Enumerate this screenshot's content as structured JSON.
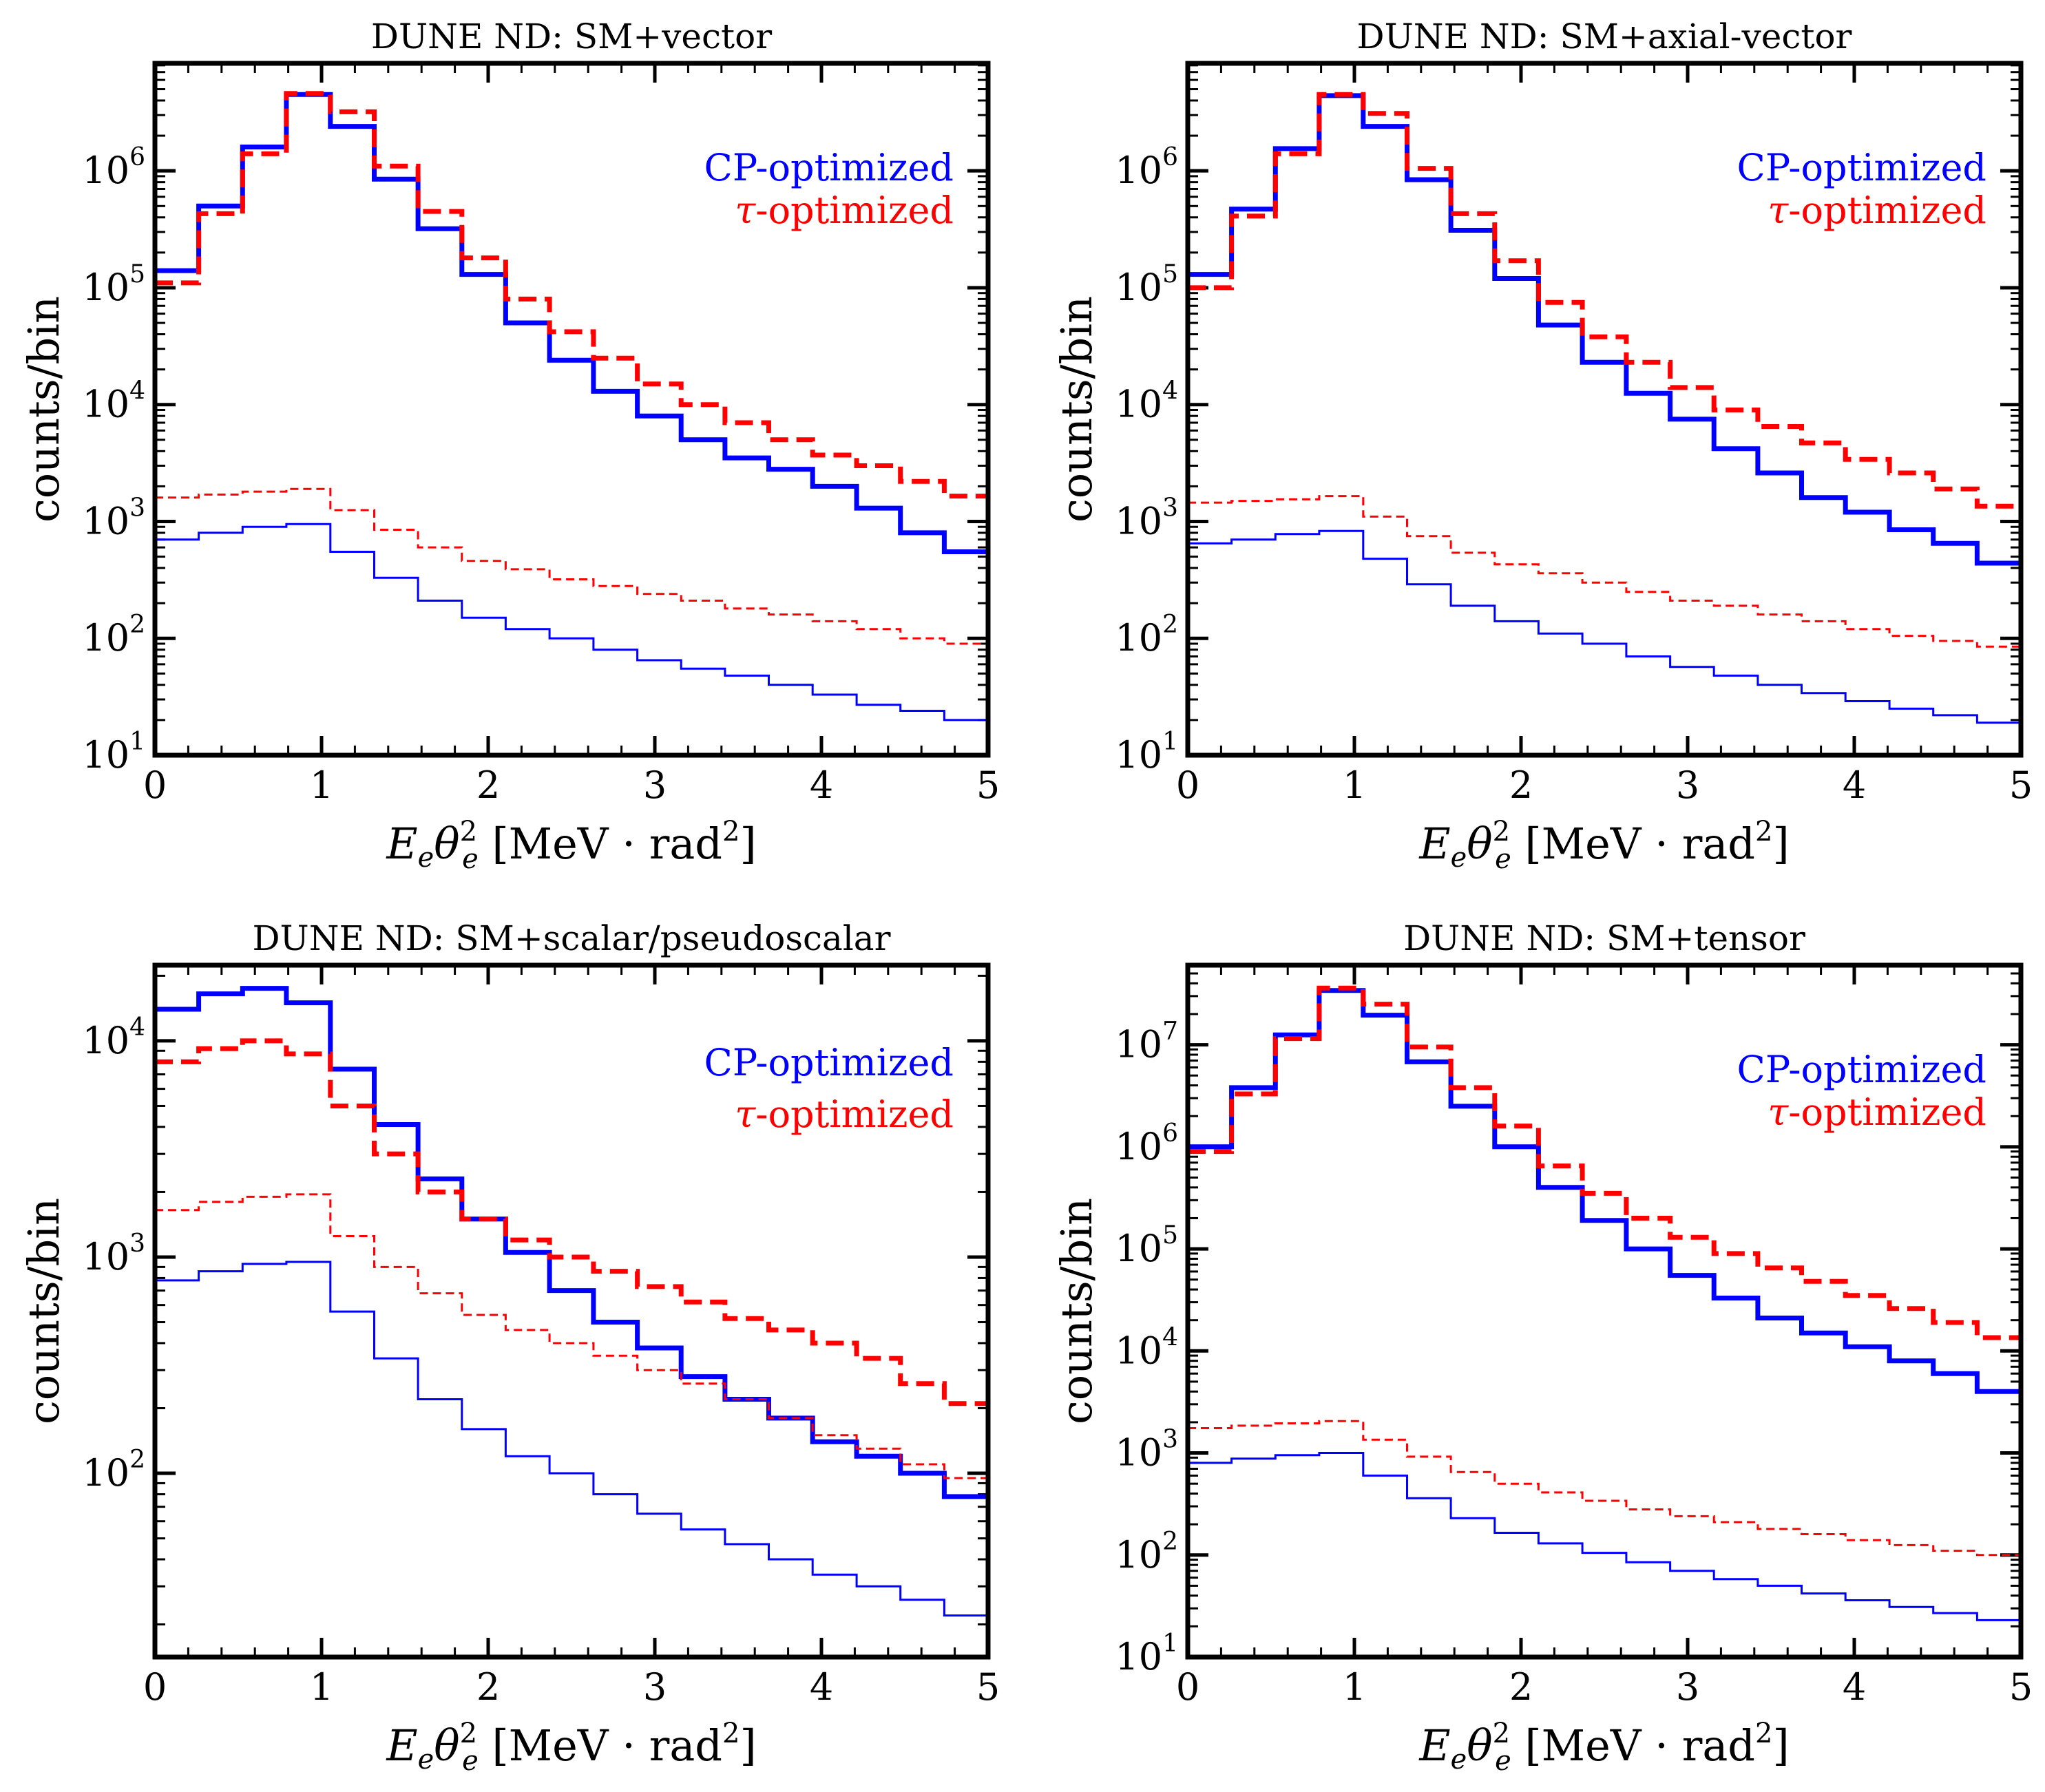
{
  "chart_data": [
    {
      "type": "line",
      "title": "DUNE ND: SM+vector",
      "xlabel": "E_e θ_e^2 [MeV · rad^2]",
      "xlabel_parts": {
        "main": "E",
        "main_sub": "e",
        "angle": "θ",
        "angle_sup": "2",
        "angle_sub": "e",
        "unit_open": "[MeV · rad",
        "unit_sup": "2",
        "unit_close": "]"
      },
      "ylabel": "counts/bin",
      "xlim": [
        0,
        5
      ],
      "ylog": [
        1,
        6.92
      ],
      "xticks": [
        "0",
        "1",
        "2",
        "3",
        "4",
        "5"
      ],
      "yticks": [
        {
          "base": "10",
          "exp": "1",
          "value": 10
        },
        {
          "base": "10",
          "exp": "2",
          "value": 100
        },
        {
          "base": "10",
          "exp": "3",
          "value": 1000
        },
        {
          "base": "10",
          "exp": "4",
          "value": 10000
        },
        {
          "base": "10",
          "exp": "5",
          "value": 100000
        },
        {
          "base": "10",
          "exp": "6",
          "value": 1000000
        }
      ],
      "legend": [
        "CP-optimized",
        "τ-optimized"
      ],
      "legend_position": "upper-right",
      "bin_edges": [
        0,
        0.263,
        0.526,
        0.789,
        1.053,
        1.316,
        1.579,
        1.842,
        2.105,
        2.368,
        2.632,
        2.895,
        3.158,
        3.421,
        3.684,
        3.947,
        4.211,
        4.474,
        4.737,
        5.0
      ],
      "series": [
        {
          "name": "CP-optimized (signal)",
          "color": "#0000ff",
          "style": "solid",
          "weight": "thick",
          "values": [
            140000,
            500000,
            1600000,
            4500000,
            2400000,
            850000,
            320000,
            130000,
            50000,
            24000,
            13000,
            8000,
            5000,
            3500,
            2800,
            2000,
            1300,
            800,
            550
          ]
        },
        {
          "name": "τ-optimized (signal)",
          "color": "#ff0000",
          "style": "dashed",
          "weight": "thick",
          "values": [
            110000,
            430000,
            1400000,
            4600000,
            3200000,
            1100000,
            450000,
            180000,
            80000,
            42000,
            25000,
            15000,
            10000,
            7000,
            5000,
            3700,
            3000,
            2200,
            1650
          ]
        },
        {
          "name": "τ-optimized (SM)",
          "color": "#ff0000",
          "style": "dashed",
          "weight": "thin",
          "values": [
            1600,
            1700,
            1800,
            1900,
            1250,
            850,
            600,
            460,
            390,
            320,
            280,
            240,
            210,
            180,
            160,
            140,
            120,
            100,
            90
          ]
        },
        {
          "name": "CP-optimized (SM)",
          "color": "#0000ff",
          "style": "solid",
          "weight": "thin",
          "values": [
            700,
            800,
            900,
            950,
            550,
            330,
            210,
            150,
            120,
            100,
            80,
            65,
            55,
            48,
            40,
            33,
            27,
            24,
            20
          ]
        }
      ]
    },
    {
      "type": "line",
      "title": "DUNE ND: SM+axial-vector",
      "xlabel": "E_e θ_e^2 [MeV · rad^2]",
      "xlabel_parts": {
        "main": "E",
        "main_sub": "e",
        "angle": "θ",
        "angle_sup": "2",
        "angle_sub": "e",
        "unit_open": "[MeV · rad",
        "unit_sup": "2",
        "unit_close": "]"
      },
      "ylabel": "counts/bin",
      "xlim": [
        0,
        5
      ],
      "ylog": [
        1,
        6.92
      ],
      "xticks": [
        "0",
        "1",
        "2",
        "3",
        "4",
        "5"
      ],
      "yticks": [
        {
          "base": "10",
          "exp": "1",
          "value": 10
        },
        {
          "base": "10",
          "exp": "2",
          "value": 100
        },
        {
          "base": "10",
          "exp": "3",
          "value": 1000
        },
        {
          "base": "10",
          "exp": "4",
          "value": 10000
        },
        {
          "base": "10",
          "exp": "5",
          "value": 100000
        },
        {
          "base": "10",
          "exp": "6",
          "value": 1000000
        }
      ],
      "legend": [
        "CP-optimized",
        "τ-optimized"
      ],
      "legend_position": "upper-right",
      "bin_edges": [
        0,
        0.263,
        0.526,
        0.789,
        1.053,
        1.316,
        1.579,
        1.842,
        2.105,
        2.368,
        2.632,
        2.895,
        3.158,
        3.421,
        3.684,
        3.947,
        4.211,
        4.474,
        4.737,
        5.0
      ],
      "series": [
        {
          "name": "CP-optimized (signal)",
          "color": "#0000ff",
          "style": "solid",
          "weight": "thick",
          "values": [
            130000,
            470000,
            1550000,
            4400000,
            2400000,
            840000,
            310000,
            120000,
            48000,
            23000,
            12500,
            7500,
            4200,
            2600,
            1600,
            1200,
            850,
            650,
            440
          ]
        },
        {
          "name": "τ-optimized (signal)",
          "color": "#ff0000",
          "style": "dashed",
          "weight": "thick",
          "values": [
            100000,
            410000,
            1400000,
            4500000,
            3100000,
            1050000,
            430000,
            170000,
            75000,
            38000,
            23000,
            14000,
            9000,
            6500,
            4700,
            3400,
            2600,
            1900,
            1350
          ]
        },
        {
          "name": "τ-optimized (SM)",
          "color": "#ff0000",
          "style": "dashed",
          "weight": "thin",
          "values": [
            1450,
            1500,
            1550,
            1650,
            1100,
            750,
            540,
            430,
            360,
            300,
            250,
            210,
            190,
            160,
            140,
            120,
            105,
            95,
            85
          ]
        },
        {
          "name": "CP-optimized (SM)",
          "color": "#0000ff",
          "style": "solid",
          "weight": "thin",
          "values": [
            650,
            700,
            780,
            830,
            480,
            290,
            190,
            140,
            110,
            90,
            70,
            57,
            48,
            40,
            34,
            29,
            25,
            22,
            19
          ]
        }
      ]
    },
    {
      "type": "line",
      "title": "DUNE ND: SM+scalar/pseudoscalar",
      "xlabel": "E_e θ_e^2 [MeV · rad^2]",
      "xlabel_parts": {
        "main": "E",
        "main_sub": "e",
        "angle": "θ",
        "angle_sup": "2",
        "angle_sub": "e",
        "unit_open": "[MeV · rad",
        "unit_sup": "2",
        "unit_close": "]"
      },
      "ylabel": "counts/bin",
      "xlim": [
        0,
        5
      ],
      "ylog": [
        1.15,
        4.35
      ],
      "xticks": [
        "0",
        "1",
        "2",
        "3",
        "4",
        "5"
      ],
      "yticks": [
        {
          "base": "10",
          "exp": "2",
          "value": 100
        },
        {
          "base": "10",
          "exp": "3",
          "value": 1000
        },
        {
          "base": "10",
          "exp": "4",
          "value": 10000
        }
      ],
      "legend": [
        "CP-optimized",
        "τ-optimized"
      ],
      "legend_position": "upper-right",
      "bin_edges": [
        0,
        0.263,
        0.526,
        0.789,
        1.053,
        1.316,
        1.579,
        1.842,
        2.105,
        2.368,
        2.632,
        2.895,
        3.158,
        3.421,
        3.684,
        3.947,
        4.211,
        4.474,
        4.737,
        5.0
      ],
      "series": [
        {
          "name": "CP-optimized (signal)",
          "color": "#0000ff",
          "style": "solid",
          "weight": "thick",
          "values": [
            14000,
            16500,
            17500,
            15000,
            7400,
            4100,
            2300,
            1500,
            1050,
            700,
            500,
            380,
            280,
            220,
            180,
            140,
            120,
            100,
            78
          ]
        },
        {
          "name": "τ-optimized (signal)",
          "color": "#ff0000",
          "style": "dashed",
          "weight": "thick",
          "values": [
            8000,
            9200,
            10000,
            8700,
            5000,
            3000,
            2000,
            1500,
            1200,
            1000,
            860,
            730,
            620,
            520,
            460,
            400,
            340,
            260,
            210
          ]
        },
        {
          "name": "τ-optimized (SM)",
          "color": "#ff0000",
          "style": "dashed",
          "weight": "thin",
          "values": [
            1650,
            1800,
            1900,
            1950,
            1250,
            900,
            680,
            540,
            460,
            400,
            350,
            300,
            260,
            220,
            180,
            150,
            130,
            110,
            95
          ]
        },
        {
          "name": "CP-optimized (SM)",
          "color": "#0000ff",
          "style": "solid",
          "weight": "thin",
          "values": [
            780,
            860,
            930,
            950,
            560,
            340,
            220,
            160,
            120,
            100,
            80,
            65,
            55,
            47,
            40,
            34,
            30,
            26,
            22
          ]
        }
      ]
    },
    {
      "type": "line",
      "title": "DUNE ND: SM+tensor",
      "xlabel": "E_e θ_e^2 [MeV · rad^2]",
      "xlabel_parts": {
        "main": "E",
        "main_sub": "e",
        "angle": "θ",
        "angle_sup": "2",
        "angle_sub": "e",
        "unit_open": "[MeV · rad",
        "unit_sup": "2",
        "unit_close": "]"
      },
      "ylabel": "counts/bin",
      "xlim": [
        0,
        5
      ],
      "ylog": [
        1,
        7.78
      ],
      "xticks": [
        "0",
        "1",
        "2",
        "3",
        "4",
        "5"
      ],
      "yticks": [
        {
          "base": "10",
          "exp": "1",
          "value": 10
        },
        {
          "base": "10",
          "exp": "2",
          "value": 100
        },
        {
          "base": "10",
          "exp": "3",
          "value": 1000
        },
        {
          "base": "10",
          "exp": "4",
          "value": 10000
        },
        {
          "base": "10",
          "exp": "5",
          "value": 100000
        },
        {
          "base": "10",
          "exp": "6",
          "value": 1000000
        },
        {
          "base": "10",
          "exp": "7",
          "value": 10000000
        }
      ],
      "legend": [
        "CP-optimized",
        "τ-optimized"
      ],
      "legend_position": "upper-right",
      "bin_edges": [
        0,
        0.263,
        0.526,
        0.789,
        1.053,
        1.316,
        1.579,
        1.842,
        2.105,
        2.368,
        2.632,
        2.895,
        3.158,
        3.421,
        3.684,
        3.947,
        4.211,
        4.474,
        4.737,
        5.0
      ],
      "series": [
        {
          "name": "CP-optimized (signal)",
          "color": "#0000ff",
          "style": "solid",
          "weight": "thick",
          "values": [
            1000000,
            3800000,
            12500000,
            34000000,
            19500000,
            6800000,
            2500000,
            1000000,
            400000,
            190000,
            100000,
            55000,
            33000,
            21000,
            15000,
            11000,
            8000,
            6000,
            4000
          ]
        },
        {
          "name": "τ-optimized (signal)",
          "color": "#ff0000",
          "style": "dashed",
          "weight": "thick",
          "values": [
            900000,
            3300000,
            11500000,
            36000000,
            25000000,
            9500000,
            3800000,
            1600000,
            650000,
            350000,
            200000,
            130000,
            90000,
            65000,
            48000,
            35000,
            26000,
            19000,
            13500
          ]
        },
        {
          "name": "τ-optimized (SM)",
          "color": "#ff0000",
          "style": "dashed",
          "weight": "thin",
          "values": [
            1750,
            1850,
            1950,
            2050,
            1350,
            920,
            650,
            500,
            410,
            340,
            280,
            240,
            210,
            180,
            160,
            140,
            125,
            110,
            100
          ]
        },
        {
          "name": "CP-optimized (SM)",
          "color": "#0000ff",
          "style": "solid",
          "weight": "thin",
          "values": [
            800,
            880,
            950,
            1000,
            600,
            360,
            230,
            165,
            130,
            105,
            85,
            70,
            58,
            50,
            42,
            36,
            31,
            27,
            23
          ]
        }
      ]
    }
  ]
}
